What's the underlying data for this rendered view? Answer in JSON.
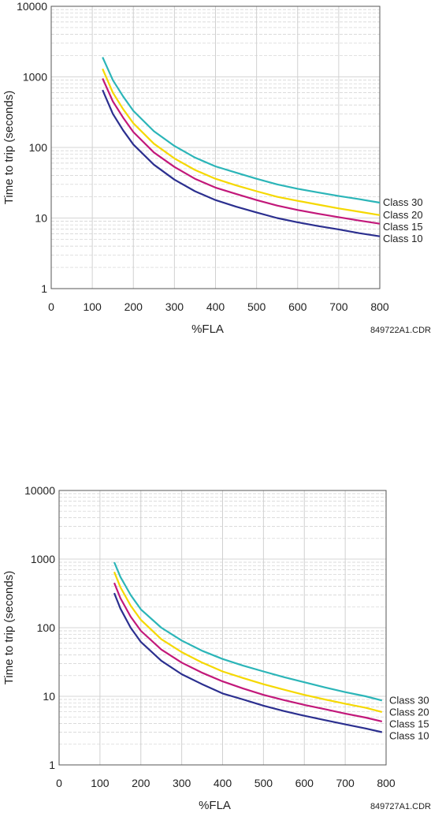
{
  "chart_data": [
    {
      "type": "line",
      "xlabel": "%FLA",
      "ylabel": "Time to trip (seconds)",
      "xlim": [
        0,
        800
      ],
      "ylim": [
        1,
        10000
      ],
      "y_scale": "log",
      "grid": true,
      "legend_placement": "right",
      "x_ticks": [
        "0",
        "100",
        "200",
        "300",
        "400",
        "500",
        "600",
        "700",
        "800"
      ],
      "y_ticks": [
        "1",
        "10",
        "100",
        "1000",
        "10000"
      ],
      "drawing_ref": "849722A1.CDR",
      "series": [
        {
          "name": "Class 30",
          "color": "#2bb5b8",
          "x": [
            125,
            150,
            175,
            200,
            250,
            300,
            350,
            400,
            450,
            500,
            550,
            600,
            650,
            700,
            750,
            800
          ],
          "y": [
            1900,
            900,
            530,
            330,
            170,
            105,
            72,
            54,
            44,
            36,
            30,
            26,
            23,
            20.5,
            18.5,
            16.5
          ]
        },
        {
          "name": "Class 20",
          "color": "#f5d800",
          "x": [
            125,
            150,
            175,
            200,
            250,
            300,
            350,
            400,
            450,
            500,
            550,
            600,
            650,
            700,
            750,
            800
          ],
          "y": [
            1300,
            600,
            350,
            220,
            113,
            70,
            48,
            36,
            29,
            24,
            20,
            17.5,
            15.5,
            13.7,
            12.3,
            11
          ]
        },
        {
          "name": "Class 15",
          "color": "#c2187a",
          "x": [
            125,
            150,
            175,
            200,
            250,
            300,
            350,
            400,
            450,
            500,
            550,
            600,
            650,
            700,
            750,
            800
          ],
          "y": [
            950,
            450,
            265,
            165,
            85,
            53,
            36,
            27,
            22,
            18,
            15,
            13,
            11.5,
            10.3,
            9.2,
            8.3
          ]
        },
        {
          "name": "Class 10",
          "color": "#2b2f8f",
          "x": [
            125,
            150,
            175,
            200,
            250,
            300,
            350,
            400,
            450,
            500,
            550,
            600,
            650,
            700,
            750,
            800
          ],
          "y": [
            650,
            300,
            175,
            110,
            57,
            35,
            24,
            18,
            14.5,
            12,
            10,
            8.7,
            7.7,
            6.9,
            6.1,
            5.5
          ]
        }
      ]
    },
    {
      "type": "line",
      "xlabel": "%FLA",
      "ylabel": "Time to trip (seconds)",
      "xlim": [
        0,
        800
      ],
      "ylim": [
        1,
        10000
      ],
      "y_scale": "log",
      "grid": true,
      "legend_placement": "right",
      "x_ticks": [
        "0",
        "100",
        "200",
        "300",
        "400",
        "500",
        "600",
        "700",
        "800"
      ],
      "y_ticks": [
        "1",
        "10",
        "100",
        "1000",
        "10000"
      ],
      "drawing_ref": "849727A1.CDR",
      "series": [
        {
          "name": "Class 30",
          "color": "#2bb5b8",
          "x": [
            135,
            150,
            175,
            200,
            250,
            300,
            350,
            400,
            450,
            500,
            550,
            600,
            650,
            700,
            750,
            790
          ],
          "y": [
            900,
            550,
            300,
            185,
            100,
            65,
            46,
            35,
            28,
            23,
            19,
            16,
            13.5,
            11.5,
            10,
            8.7
          ]
        },
        {
          "name": "Class 20",
          "color": "#f5d800",
          "x": [
            135,
            150,
            175,
            200,
            250,
            300,
            350,
            400,
            450,
            500,
            550,
            600,
            650,
            700,
            750,
            790
          ],
          "y": [
            650,
            390,
            210,
            130,
            68,
            44,
            31,
            23,
            18.5,
            15,
            12.5,
            10.5,
            9,
            7.8,
            6.8,
            5.9
          ]
        },
        {
          "name": "Class 15",
          "color": "#c2187a",
          "x": [
            135,
            150,
            175,
            200,
            250,
            300,
            350,
            400,
            450,
            500,
            550,
            600,
            650,
            700,
            750,
            790
          ],
          "y": [
            450,
            270,
            145,
            90,
            48,
            31,
            22,
            16.5,
            13,
            10.5,
            8.8,
            7.5,
            6.5,
            5.6,
            4.9,
            4.3
          ]
        },
        {
          "name": "Class 10",
          "color": "#2b2f8f",
          "x": [
            135,
            150,
            175,
            200,
            250,
            300,
            350,
            400,
            450,
            500,
            550,
            600,
            650,
            700,
            750,
            790
          ],
          "y": [
            320,
            190,
            100,
            62,
            33,
            21,
            15,
            11,
            9,
            7.3,
            6.1,
            5.2,
            4.5,
            3.9,
            3.4,
            3.0
          ]
        }
      ]
    }
  ]
}
